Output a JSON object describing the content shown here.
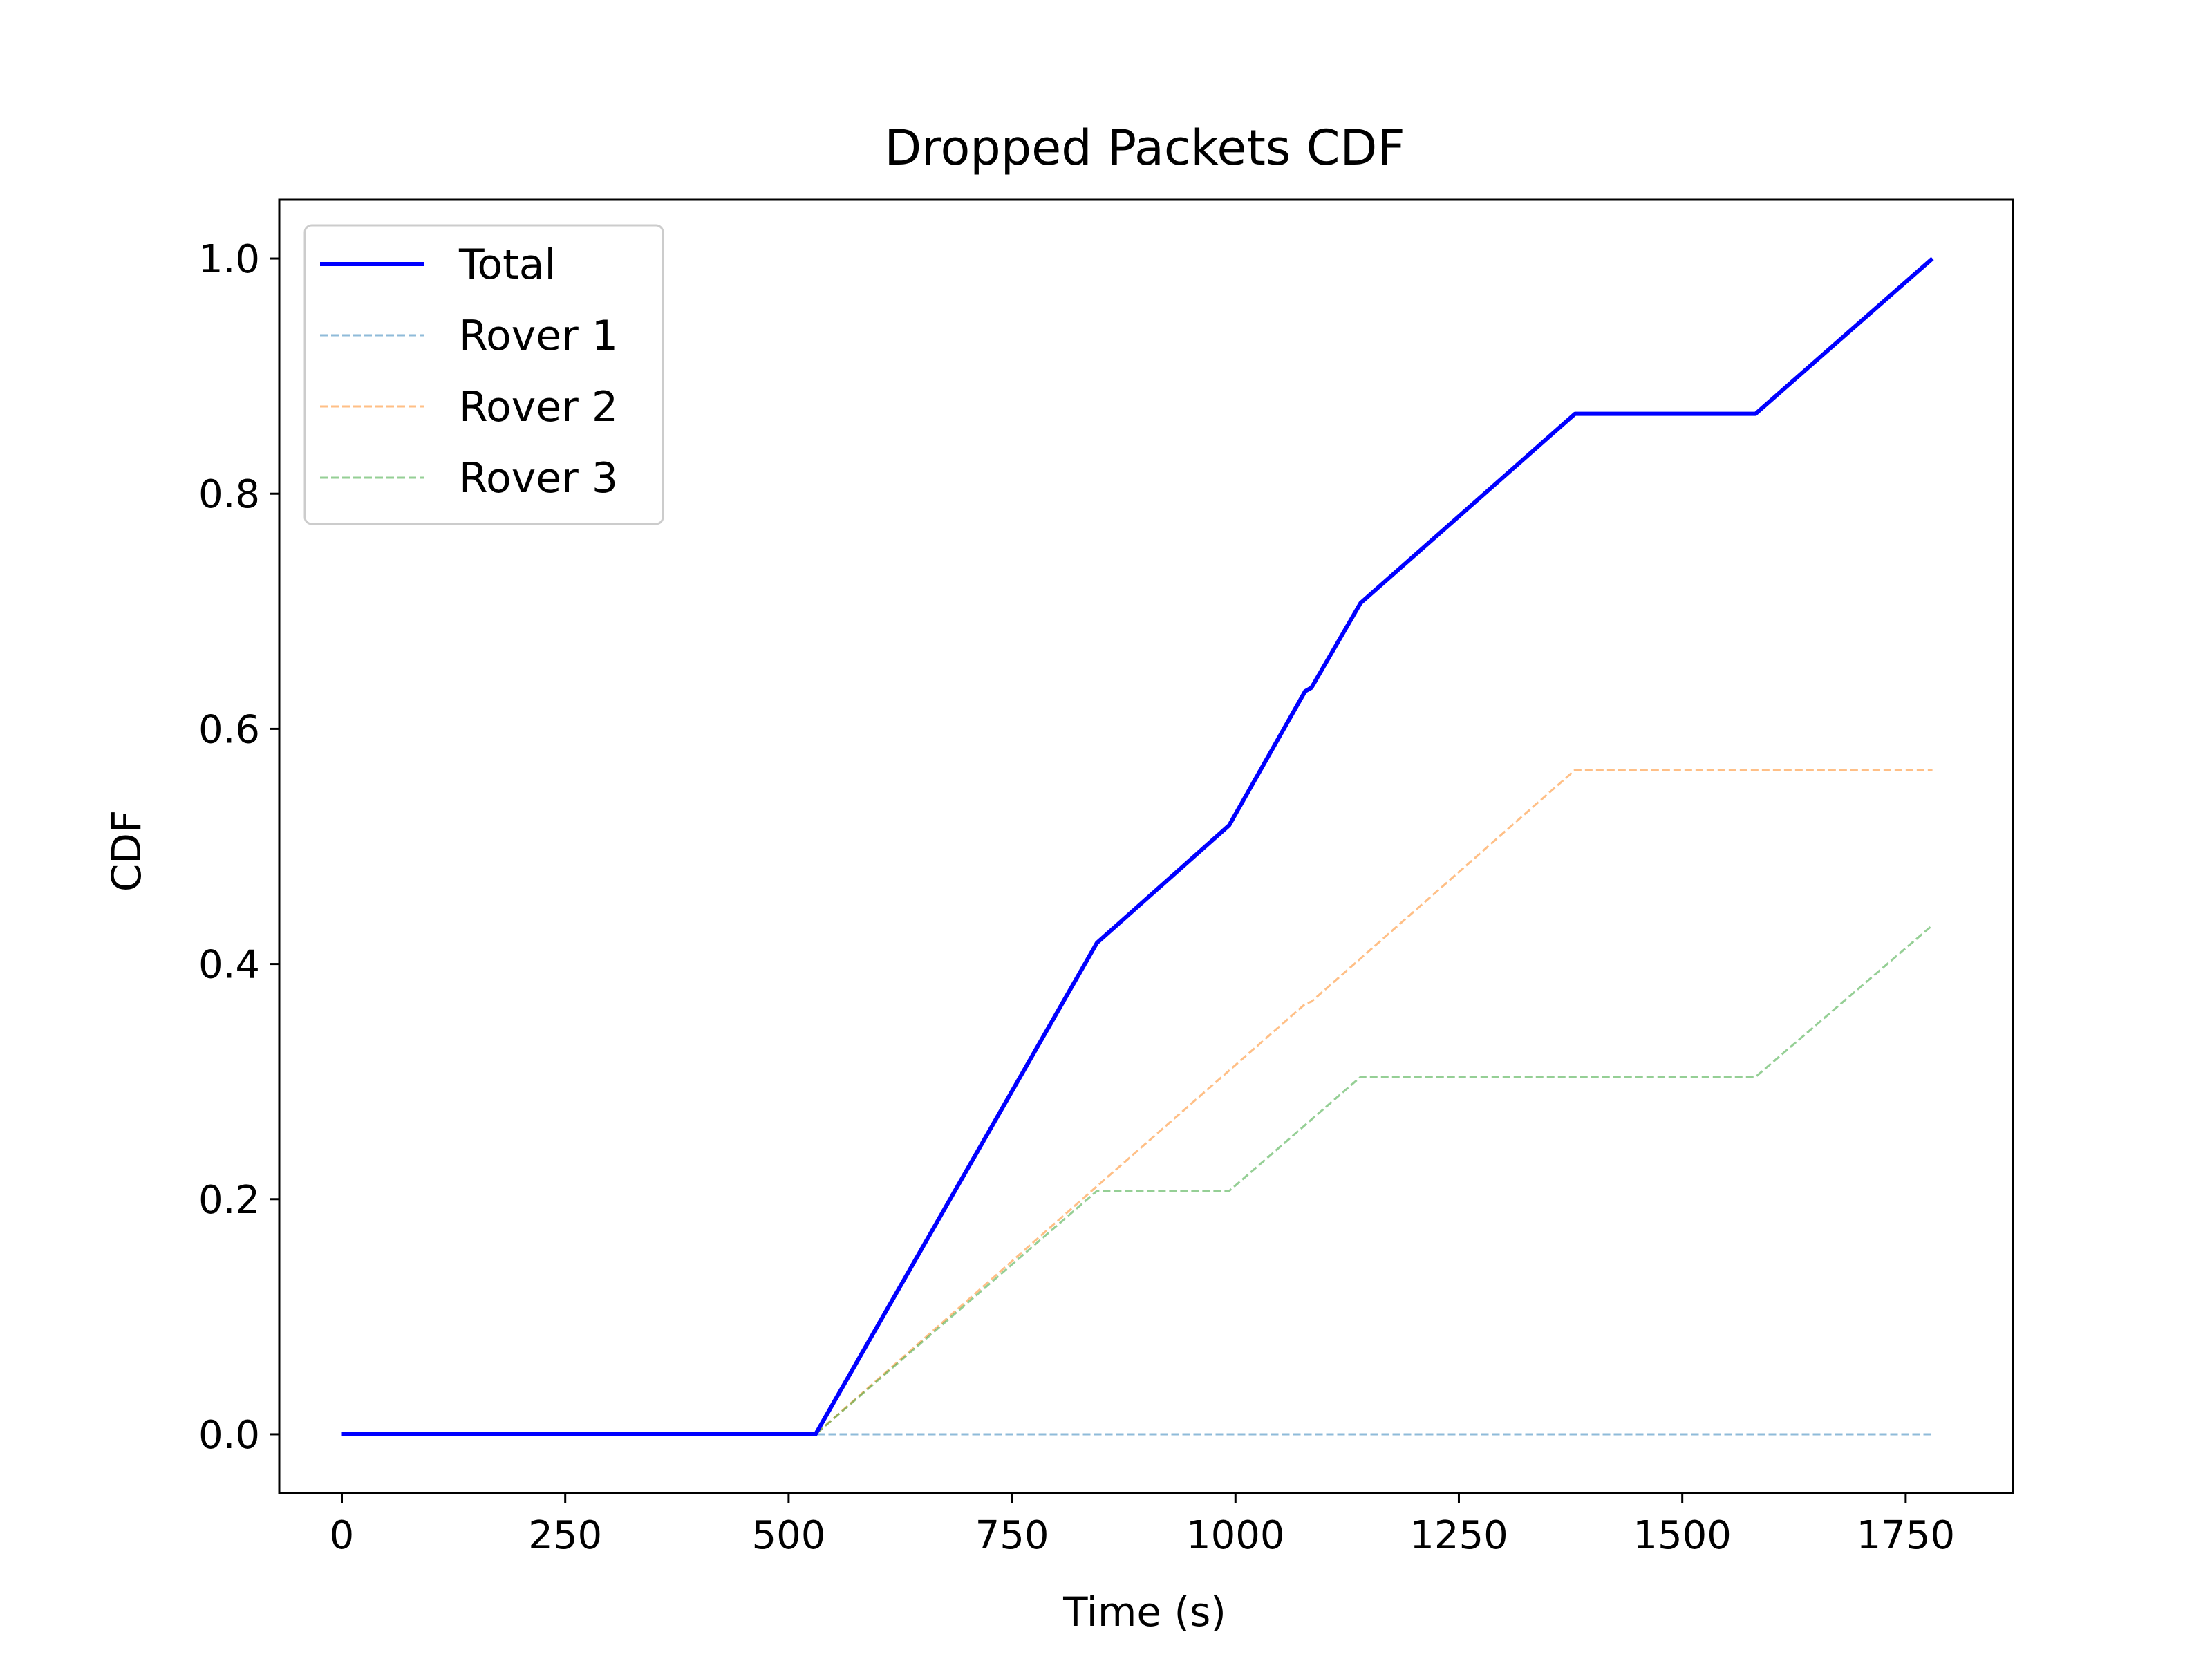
{
  "chart_data": {
    "type": "line",
    "title": "Dropped Packets CDF",
    "xlabel": "Time (s)",
    "ylabel": "CDF",
    "xlim": [
      -70,
      1870
    ],
    "ylim": [
      -0.05,
      1.05
    ],
    "xticks": [
      0,
      250,
      500,
      750,
      1000,
      1250,
      1500,
      1750
    ],
    "xtick_labels": [
      "0",
      "250",
      "500",
      "750",
      "1000",
      "1250",
      "1500",
      "1750"
    ],
    "yticks": [
      0.0,
      0.2,
      0.4,
      0.6,
      0.8,
      1.0
    ],
    "ytick_labels": [
      "0.0",
      "0.2",
      "0.4",
      "0.6",
      "0.8",
      "1.0"
    ],
    "grid": false,
    "legend_position": "top-left",
    "series": [
      {
        "name": "Total",
        "color": "#0000ff",
        "style": "solid",
        "x": [
          0,
          530,
          845,
          993,
          1078,
          1085,
          1140,
          1380,
          1582,
          1780
        ],
        "y": [
          0.0,
          0.0,
          0.418,
          0.518,
          0.632,
          0.635,
          0.707,
          0.868,
          0.868,
          1.0
        ]
      },
      {
        "name": "Rover 1",
        "color": "#1f77b4",
        "style": "dashed",
        "x": [
          0,
          1780
        ],
        "y": [
          0.0,
          0.0
        ]
      },
      {
        "name": "Rover 2",
        "color": "#ff7f0e",
        "style": "dashed",
        "x": [
          0,
          530,
          845,
          1078,
          1085,
          1380,
          1780
        ],
        "y": [
          0.0,
          0.0,
          0.211,
          0.366,
          0.368,
          0.565,
          0.565
        ]
      },
      {
        "name": "Rover 3",
        "color": "#2ca02c",
        "style": "dashed",
        "x": [
          0,
          530,
          845,
          993,
          1140,
          1582,
          1780
        ],
        "y": [
          0.0,
          0.0,
          0.207,
          0.207,
          0.304,
          0.304,
          0.433
        ]
      }
    ]
  }
}
